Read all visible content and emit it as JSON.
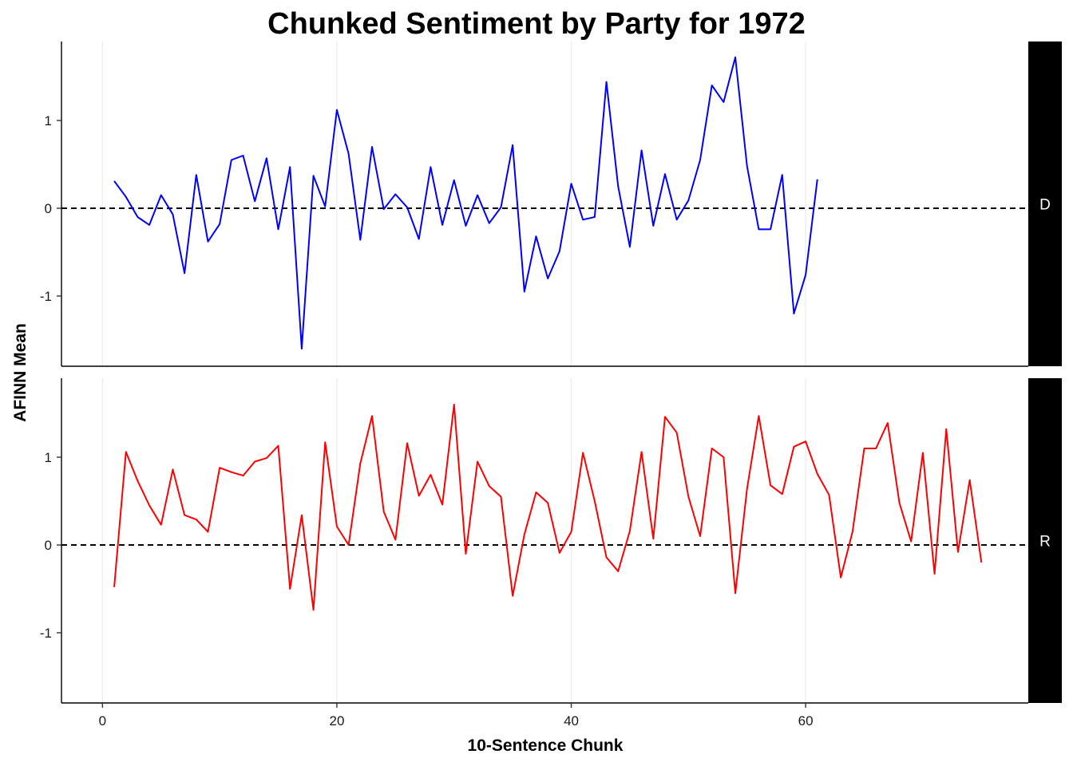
{
  "chart_data": {
    "type": "line",
    "title": "Chunked Sentiment by Party for 1972",
    "xlabel": "10-Sentence Chunk",
    "ylabel": "AFINN Mean",
    "xlim": [
      -3.5,
      79
    ],
    "ylim": [
      -1.8,
      1.9
    ],
    "x_ticks": [
      0,
      20,
      40,
      60
    ],
    "y_ticks": [
      -1,
      0,
      1
    ],
    "reference_line": {
      "y": 0,
      "style": "dashed"
    },
    "grid": "vertical-major",
    "facets": [
      {
        "label": "D",
        "color": "#0000ff",
        "x_start": 1,
        "values": [
          0.31,
          0.13,
          -0.1,
          -0.19,
          0.15,
          -0.07,
          -0.74,
          0.38,
          -0.38,
          -0.18,
          0.55,
          0.6,
          0.08,
          0.57,
          -0.24,
          0.47,
          -1.6,
          0.37,
          0.02,
          1.12,
          0.62,
          -0.36,
          0.7,
          -0.01,
          0.16,
          0.01,
          -0.35,
          0.47,
          -0.19,
          0.32,
          -0.2,
          0.15,
          -0.17,
          0.01,
          0.72,
          -0.95,
          -0.32,
          -0.8,
          -0.49,
          0.28,
          -0.13,
          -0.1,
          1.44,
          0.25,
          -0.44,
          0.66,
          -0.2,
          0.39,
          -0.13,
          0.09,
          0.55,
          1.4,
          1.21,
          1.72,
          0.48,
          -0.24,
          -0.24,
          0.38,
          -1.2,
          -0.76,
          0.33
        ]
      },
      {
        "label": "R",
        "color": "#ff0000",
        "x_start": 1,
        "values": [
          -0.48,
          1.06,
          0.73,
          0.45,
          0.23,
          0.86,
          0.34,
          0.29,
          0.15,
          0.88,
          0.83,
          0.79,
          0.95,
          0.99,
          1.13,
          -0.5,
          0.34,
          -0.74,
          1.17,
          0.21,
          0.0,
          0.93,
          1.47,
          0.38,
          0.06,
          1.16,
          0.56,
          0.8,
          0.46,
          1.6,
          -0.1,
          0.95,
          0.67,
          0.55,
          -0.58,
          0.12,
          0.6,
          0.48,
          -0.09,
          0.15,
          1.05,
          0.5,
          -0.14,
          -0.3,
          0.16,
          1.06,
          0.07,
          1.46,
          1.28,
          0.55,
          0.1,
          1.1,
          1.0,
          -0.55,
          0.64,
          1.47,
          0.68,
          0.58,
          1.12,
          1.18,
          0.81,
          0.57,
          -0.37,
          0.15,
          1.1,
          1.1,
          1.39,
          0.48,
          0.04,
          1.05,
          -0.33,
          1.32,
          -0.08,
          0.74,
          -0.2
        ]
      }
    ]
  }
}
